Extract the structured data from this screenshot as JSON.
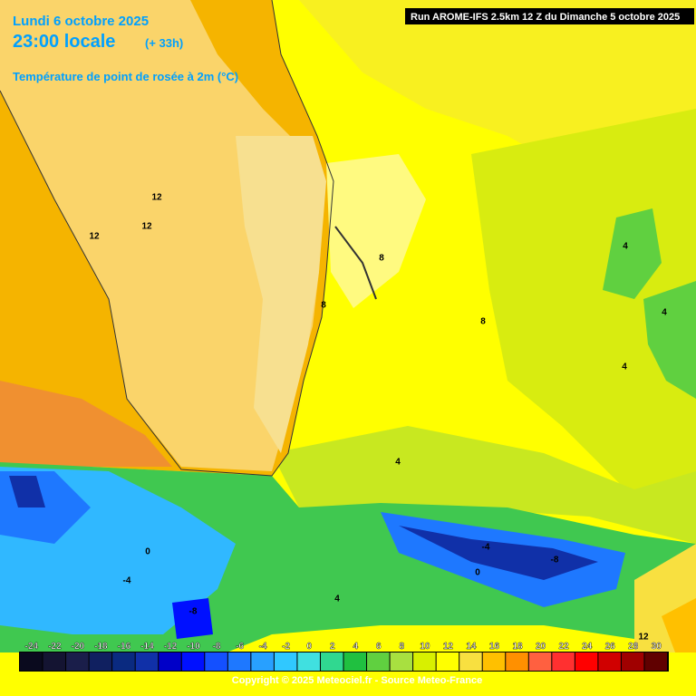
{
  "header": {
    "date": "Lundi 6 octobre 2025",
    "time": "23:00 locale",
    "lead": "(+ 33h)",
    "variable": "Température de point de rosée à 2m (°C)"
  },
  "run": "Run AROME-IFS 2.5km 12 Z du Dimanche 5 octobre 2025",
  "contour_labels": [
    "12",
    "12",
    "12",
    "8",
    "8",
    "8",
    "4",
    "4",
    "4",
    "4",
    "0",
    "-4",
    "-8",
    "-4",
    "-8",
    "0",
    "4",
    "12"
  ],
  "colorbar": {
    "labels": [
      "-24",
      "-22",
      "-20",
      "-18",
      "-16",
      "-14",
      "-12",
      "-10",
      "-8",
      "-6",
      "-4",
      "-2",
      "0",
      "2",
      "4",
      "6",
      "8",
      "10",
      "12",
      "14",
      "16",
      "18",
      "20",
      "22",
      "24",
      "26",
      "28",
      "30"
    ],
    "colors": [
      "#0a0a1e",
      "#141432",
      "#1a1e4a",
      "#102060",
      "#0a2a80",
      "#1030a8",
      "#0000c8",
      "#0010ff",
      "#1450ff",
      "#1e78ff",
      "#28a0ff",
      "#30c8ff",
      "#40e0e0",
      "#30d890",
      "#20c040",
      "#60d040",
      "#a8e040",
      "#d8f000",
      "#ffff00",
      "#f8e040",
      "#ffc000",
      "#ff9000",
      "#ff6040",
      "#ff3030",
      "#ff0000",
      "#d00000",
      "#a00000",
      "#600000"
    ]
  },
  "footer": "Copyright © 2025 Meteociel.fr - Source Meteo-France"
}
